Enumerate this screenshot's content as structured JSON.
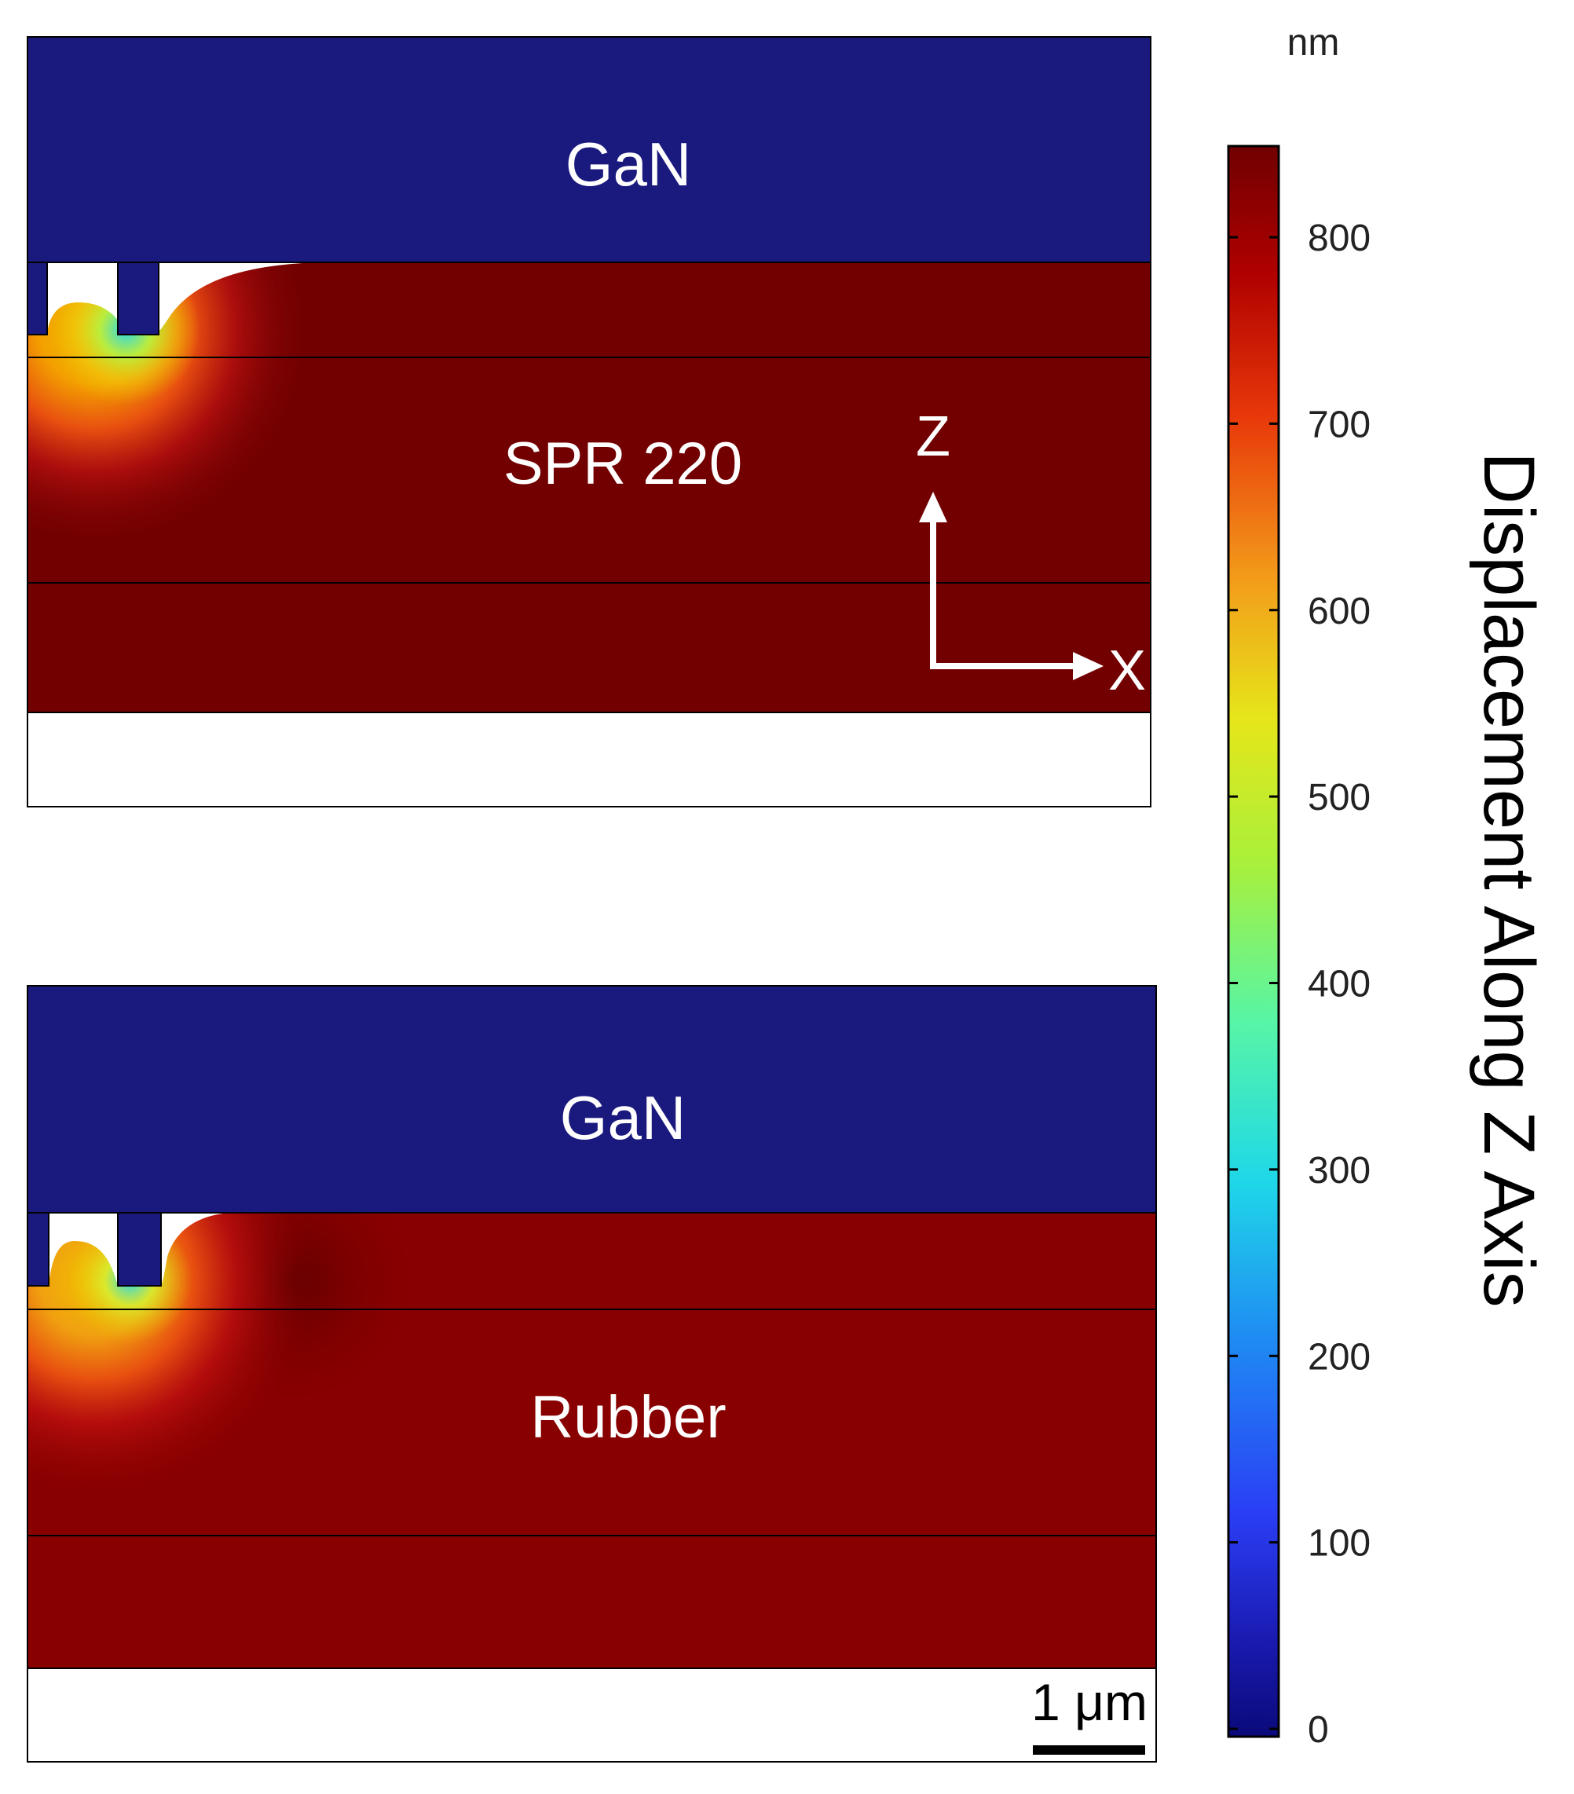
{
  "colorbar": {
    "unit": "nm",
    "title": "Displacement Along Z Axis",
    "ticks": [
      {
        "value": 0,
        "label": "0"
      },
      {
        "value": 100,
        "label": "100"
      },
      {
        "value": 200,
        "label": "200"
      },
      {
        "value": 300,
        "label": "300"
      },
      {
        "value": 400,
        "label": "400"
      },
      {
        "value": 500,
        "label": "500"
      },
      {
        "value": 600,
        "label": "600"
      },
      {
        "value": 700,
        "label": "700"
      },
      {
        "value": 800,
        "label": "800"
      }
    ],
    "range": [
      0,
      850
    ],
    "colormap": "rainbow"
  },
  "panels": {
    "top": {
      "top_layer": "GaN",
      "middle_layer": "SPR 220"
    },
    "bottom": {
      "top_layer": "GaN",
      "middle_layer": "Rubber"
    }
  },
  "axes": {
    "z_label": "Z",
    "x_label": "X"
  },
  "scale_bar": {
    "label": "1 μm"
  },
  "colors": {
    "gan": "#1a1a7e",
    "max_displacement": "#720000",
    "rubber": "#880000",
    "annotation": "#ffffff",
    "frame": "#000000"
  }
}
